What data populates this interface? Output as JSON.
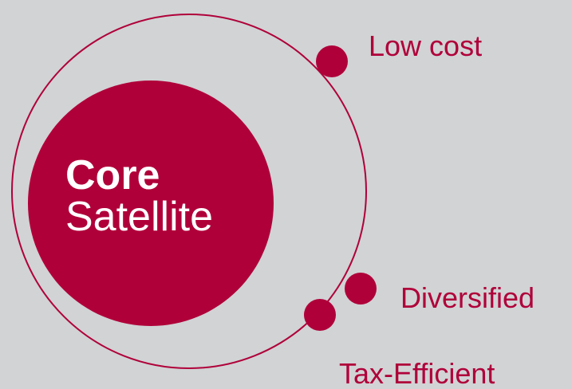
{
  "colors": {
    "background": "#d1d3d4",
    "accent": "#b0003a",
    "text_on_accent": "#ffffff"
  },
  "core": {
    "title_bold": "Core",
    "title_light": "Satellite"
  },
  "satellites": [
    {
      "label": "Low cost"
    },
    {
      "label": "Diversified"
    },
    {
      "label": "Tax-Efficient"
    }
  ]
}
